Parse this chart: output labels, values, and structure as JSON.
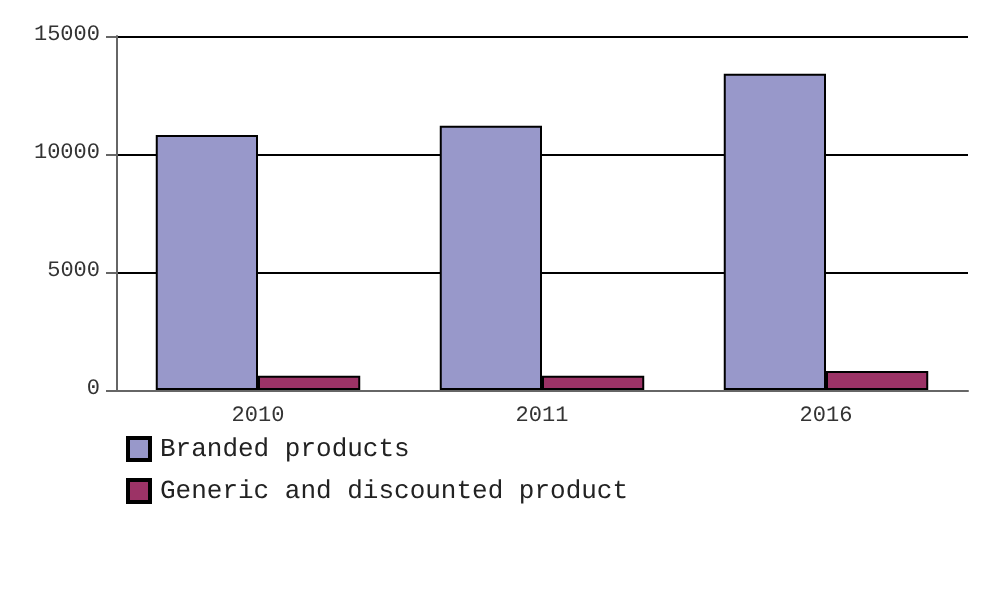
{
  "chart_data": {
    "type": "bar",
    "categories": [
      "2010",
      "2011",
      "2016"
    ],
    "series": [
      {
        "name": "Branded products",
        "color": "#9898ca",
        "values": [
          10800,
          11200,
          13400
        ]
      },
      {
        "name": "Generic and discounted product",
        "color": "#9c3366",
        "values": [
          600,
          600,
          800
        ]
      }
    ],
    "ylim": [
      0,
      15000
    ],
    "yticks": [
      0,
      5000,
      10000,
      15000
    ],
    "grid": "y",
    "legend": "bottom"
  }
}
